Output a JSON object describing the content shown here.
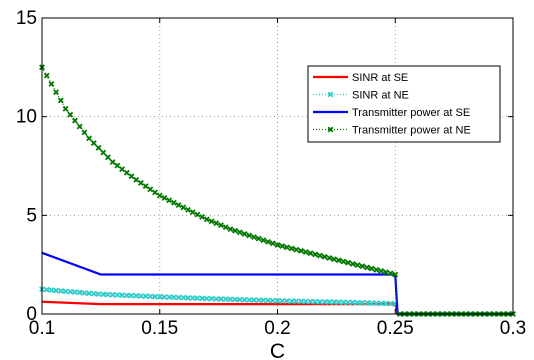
{
  "chart_data": {
    "type": "line",
    "xlabel": "C",
    "ylabel": "",
    "xlim": [
      0.1,
      0.3
    ],
    "ylim": [
      0,
      15
    ],
    "grid": true,
    "xticks": [
      0.1,
      0.15,
      0.2,
      0.25,
      0.3
    ],
    "xtick_labels": [
      "0.1",
      "0.15",
      "0.2",
      "0.25",
      "0.3"
    ],
    "yticks": [
      0,
      5,
      10,
      15
    ],
    "ytick_labels": [
      "0",
      "5",
      "10",
      "15"
    ],
    "legend_position": "top-right",
    "series": [
      {
        "name": "SINR at SE",
        "color": "#ff0000",
        "style": "solid",
        "marker": "none",
        "x": [
          0.1,
          0.125,
          0.15,
          0.175,
          0.2,
          0.225,
          0.25,
          0.251,
          0.3
        ],
        "values": [
          0.62,
          0.5,
          0.5,
          0.5,
          0.5,
          0.5,
          0.5,
          0,
          0
        ]
      },
      {
        "name": "SINR at NE",
        "color": "#33cccc",
        "style": "dotted",
        "marker": "x",
        "x": [
          0.1,
          0.125,
          0.15,
          0.175,
          0.2,
          0.225,
          0.25,
          0.251,
          0.3
        ],
        "values": [
          1.25,
          1.0,
          0.87,
          0.76,
          0.67,
          0.6,
          0.52,
          0,
          0
        ]
      },
      {
        "name": "Transmitter power at SE",
        "color": "#0000ff",
        "style": "solid",
        "marker": "none",
        "x": [
          0.1,
          0.125,
          0.15,
          0.2,
          0.25,
          0.251,
          0.3
        ],
        "values": [
          3.1,
          2.0,
          2.0,
          2.0,
          2.0,
          0,
          0
        ]
      },
      {
        "name": "Transmitter power at NE",
        "color": "#007700",
        "style": "dotted",
        "marker": "x",
        "x": [
          0.1,
          0.11,
          0.12,
          0.13,
          0.14,
          0.15,
          0.16,
          0.17,
          0.18,
          0.19,
          0.2,
          0.21,
          0.22,
          0.23,
          0.24,
          0.25,
          0.251,
          0.3
        ],
        "values": [
          12.5,
          10.4,
          8.9,
          7.7,
          6.8,
          6.0,
          5.4,
          4.8,
          4.3,
          3.9,
          3.5,
          3.2,
          2.9,
          2.6,
          2.3,
          2.0,
          0,
          0
        ]
      }
    ]
  }
}
